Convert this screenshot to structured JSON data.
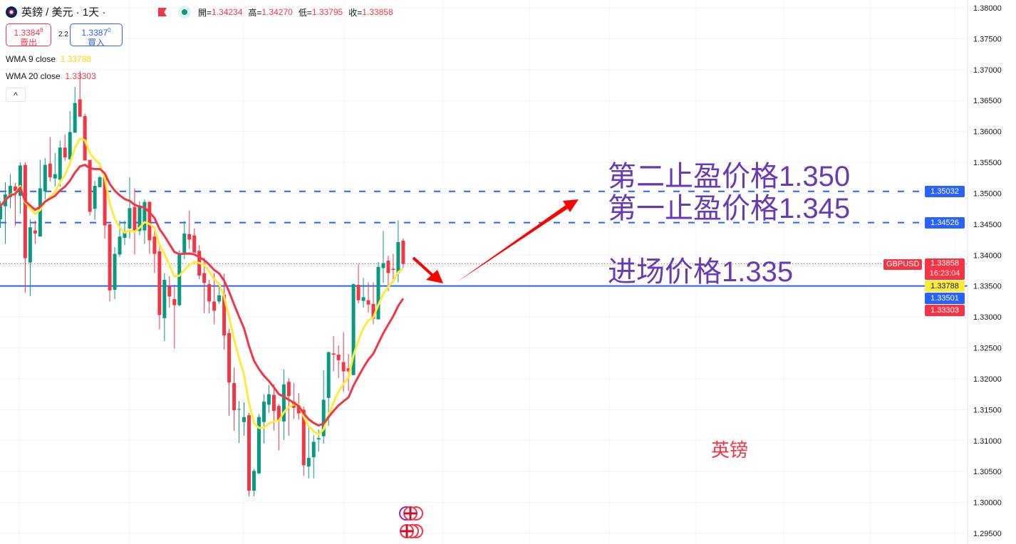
{
  "header": {
    "symbol": "英鎊 / 美元 · 1天 ·",
    "ohlc": [
      {
        "label": "開=",
        "value": "1.34234"
      },
      {
        "label": "高=",
        "value": "1.34270"
      },
      {
        "label": "低=",
        "value": "1.33795"
      },
      {
        "label": "收=",
        "value": "1.33858"
      }
    ]
  },
  "trade": {
    "sell_price": "1.3384",
    "sell_sup": "8",
    "sell_label": "賣出",
    "spread": "2.2",
    "buy_price": "1.3387",
    "buy_sup": "0",
    "buy_label": "買入"
  },
  "legend": {
    "wma9_label": "WMA 9 close",
    "wma9_value": "1.33788",
    "wma20_label": "WMA 20 close",
    "wma20_value": "1.33303",
    "collapse": "^"
  },
  "annotations": {
    "tp2": "第二止盈价格1.350",
    "tp1": "第一止盈价格1.345",
    "entry": "进场价格1.335",
    "watermark": "英镑"
  },
  "price_badges": {
    "symbol": "GBPUSD",
    "tp2": "1.35032",
    "tp1": "1.34526",
    "last": "1.33858",
    "countdown": "16:23:04",
    "wma9": "1.33788",
    "entry": "1.33501",
    "wma20": "1.33303"
  },
  "colors": {
    "up": "#089981",
    "down": "#f23645",
    "wma9": "#ffeb3b",
    "wma20": "#f23645",
    "level_line": "#2962ff",
    "annotation": "#673ab7",
    "arrow": "#ff0000"
  },
  "chart_data": {
    "type": "candlestick",
    "symbol": "GBPUSD",
    "interval": "1天",
    "ylim": [
      1.295,
      1.38
    ],
    "y_ticks": [
      "1.38000",
      "1.37500",
      "1.37000",
      "1.36500",
      "1.36000",
      "1.35500",
      "1.35000",
      "1.34500",
      "1.34000",
      "1.33500",
      "1.33000",
      "1.32500",
      "1.32000",
      "1.31500",
      "1.31000",
      "1.30500",
      "1.30000",
      "1.29500"
    ],
    "grid": true,
    "horizontal_lines": [
      {
        "price": 1.35032,
        "style": "dashed"
      },
      {
        "price": 1.34526,
        "style": "dashed"
      },
      {
        "price": 1.33501,
        "style": "solid"
      }
    ],
    "indicators": [
      {
        "name": "WMA 9 close",
        "period": 9
      },
      {
        "name": "WMA 20 close",
        "period": 20
      }
    ],
    "ohlc_fields": [
      "open",
      "high",
      "low",
      "close"
    ],
    "candles": [
      [
        1.3458,
        1.3487,
        1.3444,
        1.3479
      ],
      [
        1.3479,
        1.3518,
        1.3418,
        1.3498
      ],
      [
        1.3494,
        1.3531,
        1.3476,
        1.3512
      ],
      [
        1.3511,
        1.3517,
        1.3447,
        1.3504
      ],
      [
        1.3496,
        1.355,
        1.3467,
        1.3545
      ],
      [
        1.3546,
        1.355,
        1.3339,
        1.3395
      ],
      [
        1.3388,
        1.3458,
        1.3334,
        1.3445
      ],
      [
        1.344,
        1.3456,
        1.3418,
        1.3435
      ],
      [
        1.343,
        1.3554,
        1.343,
        1.3508
      ],
      [
        1.3503,
        1.3557,
        1.349,
        1.3546
      ],
      [
        1.3548,
        1.3591,
        1.3519,
        1.3526
      ],
      [
        1.3524,
        1.3565,
        1.3511,
        1.3531
      ],
      [
        1.3522,
        1.3585,
        1.3511,
        1.3574
      ],
      [
        1.3574,
        1.3595,
        1.3553,
        1.3558
      ],
      [
        1.3555,
        1.3633,
        1.3545,
        1.3599
      ],
      [
        1.3598,
        1.3672,
        1.3598,
        1.3646
      ],
      [
        1.3652,
        1.3698,
        1.3624,
        1.3624
      ],
      [
        1.3625,
        1.3629,
        1.3553,
        1.3553
      ],
      [
        1.3554,
        1.3554,
        1.3464,
        1.347
      ],
      [
        1.3475,
        1.352,
        1.3457,
        1.3512
      ],
      [
        1.351,
        1.3528,
        1.351,
        1.3526
      ],
      [
        1.3526,
        1.3533,
        1.3427,
        1.3448
      ],
      [
        1.345,
        1.345,
        1.3325,
        1.3343
      ],
      [
        1.3344,
        1.3413,
        1.3329,
        1.3402
      ],
      [
        1.3401,
        1.3456,
        1.3397,
        1.343
      ],
      [
        1.3428,
        1.3456,
        1.3416,
        1.3439
      ],
      [
        1.3443,
        1.3526,
        1.3427,
        1.3476
      ],
      [
        1.3478,
        1.3508,
        1.3401,
        1.3439
      ],
      [
        1.3439,
        1.3487,
        1.3432,
        1.348
      ],
      [
        1.344,
        1.349,
        1.3418,
        1.3486
      ],
      [
        1.3486,
        1.3487,
        1.3402,
        1.3424
      ],
      [
        1.343,
        1.3439,
        1.3371,
        1.3402
      ],
      [
        1.3406,
        1.3419,
        1.328,
        1.3303
      ],
      [
        1.3298,
        1.3371,
        1.3261,
        1.336
      ],
      [
        1.335,
        1.3366,
        1.3315,
        1.3333
      ],
      [
        1.3329,
        1.3352,
        1.3249,
        1.3319
      ],
      [
        1.3319,
        1.3408,
        1.3317,
        1.3402
      ],
      [
        1.3401,
        1.3455,
        1.3393,
        1.3435
      ],
      [
        1.3434,
        1.3472,
        1.341,
        1.3425
      ],
      [
        1.3432,
        1.3443,
        1.3404,
        1.3404
      ],
      [
        1.3407,
        1.3416,
        1.3361,
        1.3367
      ],
      [
        1.3371,
        1.3396,
        1.3306,
        1.3355
      ],
      [
        1.3353,
        1.336,
        1.3306,
        1.3325
      ],
      [
        1.3325,
        1.3371,
        1.3288,
        1.331
      ],
      [
        1.3325,
        1.3353,
        1.3321,
        1.3335
      ],
      [
        1.3336,
        1.337,
        1.3247,
        1.327
      ],
      [
        1.3274,
        1.3281,
        1.314,
        1.3194
      ],
      [
        1.3193,
        1.3218,
        1.3116,
        1.3149
      ],
      [
        1.315,
        1.3164,
        1.3096,
        1.3151
      ],
      [
        1.313,
        1.3162,
        1.3108,
        1.3138
      ],
      [
        1.3141,
        1.3145,
        1.301,
        1.3019
      ],
      [
        1.3019,
        1.3054,
        1.301,
        1.3051
      ],
      [
        1.3047,
        1.3143,
        1.3046,
        1.3138
      ],
      [
        1.313,
        1.3175,
        1.3095,
        1.3163
      ],
      [
        1.3158,
        1.319,
        1.3145,
        1.3175
      ],
      [
        1.3174,
        1.3191,
        1.3116,
        1.3148
      ],
      [
        1.3156,
        1.3159,
        1.3084,
        1.3132
      ],
      [
        1.3131,
        1.3215,
        1.3101,
        1.3191
      ],
      [
        1.3195,
        1.3201,
        1.3108,
        1.3172
      ],
      [
        1.3163,
        1.3193,
        1.3135,
        1.3153
      ],
      [
        1.3157,
        1.3177,
        1.3134,
        1.3144
      ],
      [
        1.315,
        1.3155,
        1.3043,
        1.306
      ],
      [
        1.3058,
        1.3124,
        1.3039,
        1.3072
      ],
      [
        1.3073,
        1.3109,
        1.3039,
        1.3098
      ],
      [
        1.3102,
        1.3118,
        1.3082,
        1.3104
      ],
      [
        1.3107,
        1.3214,
        1.3095,
        1.3166
      ],
      [
        1.3169,
        1.3244,
        1.3124,
        1.3243
      ],
      [
        1.3241,
        1.3269,
        1.3212,
        1.3239
      ],
      [
        1.3239,
        1.3254,
        1.3201,
        1.323
      ],
      [
        1.3227,
        1.3275,
        1.3179,
        1.3212
      ],
      [
        1.3217,
        1.324,
        1.318,
        1.3212
      ],
      [
        1.3206,
        1.3354,
        1.3206,
        1.3353
      ],
      [
        1.3352,
        1.3386,
        1.3322,
        1.3327
      ],
      [
        1.3326,
        1.3363,
        1.3315,
        1.3332
      ],
      [
        1.3327,
        1.3356,
        1.3307,
        1.332
      ],
      [
        1.3321,
        1.3356,
        1.3288,
        1.3297
      ],
      [
        1.3296,
        1.3389,
        1.3296,
        1.3381
      ],
      [
        1.3379,
        1.3439,
        1.3355,
        1.3387
      ],
      [
        1.3391,
        1.3399,
        1.3342,
        1.3371
      ],
      [
        1.3378,
        1.3402,
        1.3355,
        1.3376
      ],
      [
        1.3371,
        1.3456,
        1.3356,
        1.3421
      ],
      [
        1.34234,
        1.3427,
        1.33795,
        1.33858
      ]
    ]
  }
}
